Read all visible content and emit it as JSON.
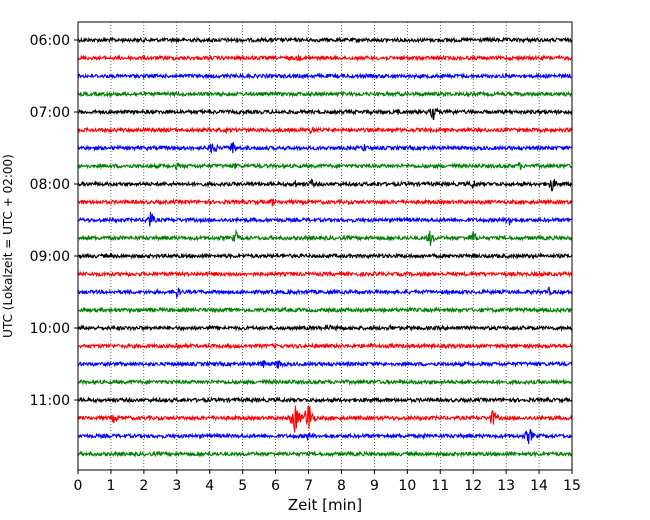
{
  "chart_data": {
    "type": "line",
    "title": "",
    "xlabel": "Zeit  [min]",
    "ylabel": "UTC (Lokalzeit = UTC + 02:00)",
    "xlim": [
      0,
      15
    ],
    "x_ticks": [
      "0",
      "1",
      "2",
      "3",
      "4",
      "5",
      "6",
      "7",
      "8",
      "9",
      "10",
      "11",
      "12",
      "13",
      "14",
      "15"
    ],
    "y_tick_labels": [
      "06:00",
      "07:00",
      "08:00",
      "09:00",
      "10:00",
      "11:00"
    ],
    "grid": "vertical dotted",
    "trace_colors": [
      "#000000",
      "#ff0000",
      "#0000ff",
      "#008000"
    ],
    "traces": [
      {
        "start": "06:00",
        "color": "#000000",
        "events": [
          [
            4.8,
            3
          ]
        ]
      },
      {
        "start": "06:15",
        "color": "#ff0000",
        "events": [
          [
            6.7,
            4
          ]
        ]
      },
      {
        "start": "06:30",
        "color": "#0000ff",
        "events": []
      },
      {
        "start": "06:45",
        "color": "#008000",
        "events": [
          [
            14.5,
            2
          ]
        ]
      },
      {
        "start": "07:00",
        "color": "#000000",
        "events": [
          [
            9.7,
            4
          ],
          [
            10.8,
            9
          ],
          [
            11.3,
            5
          ]
        ]
      },
      {
        "start": "07:15",
        "color": "#ff0000",
        "events": [
          [
            4.5,
            3
          ],
          [
            7.1,
            5
          ]
        ]
      },
      {
        "start": "07:30",
        "color": "#0000ff",
        "events": [
          [
            4.1,
            9
          ],
          [
            4.7,
            8
          ],
          [
            8.7,
            5
          ]
        ]
      },
      {
        "start": "07:45",
        "color": "#008000",
        "events": [
          [
            3.0,
            4
          ],
          [
            4.8,
            4
          ],
          [
            13.4,
            5
          ]
        ]
      },
      {
        "start": "08:00",
        "color": "#000000",
        "events": [
          [
            6.6,
            5
          ],
          [
            7.1,
            5
          ],
          [
            9.1,
            3
          ],
          [
            12.0,
            6
          ],
          [
            14.4,
            9
          ]
        ]
      },
      {
        "start": "08:15",
        "color": "#ff0000",
        "events": [
          [
            3.3,
            3
          ],
          [
            5.9,
            5
          ]
        ]
      },
      {
        "start": "08:30",
        "color": "#0000ff",
        "events": [
          [
            2.2,
            10
          ],
          [
            13.1,
            7
          ]
        ]
      },
      {
        "start": "08:45",
        "color": "#008000",
        "events": [
          [
            4.8,
            7
          ],
          [
            10.7,
            9
          ],
          [
            12.0,
            8
          ]
        ]
      },
      {
        "start": "09:00",
        "color": "#000000",
        "events": []
      },
      {
        "start": "09:15",
        "color": "#ff0000",
        "events": [
          [
            1.5,
            3
          ],
          [
            4.2,
            3
          ]
        ]
      },
      {
        "start": "09:30",
        "color": "#0000ff",
        "events": [
          [
            3.0,
            7
          ],
          [
            6.5,
            3
          ],
          [
            14.3,
            5
          ]
        ]
      },
      {
        "start": "09:45",
        "color": "#008000",
        "events": []
      },
      {
        "start": "10:00",
        "color": "#000000",
        "events": [
          [
            7.6,
            5
          ],
          [
            7.9,
            4
          ],
          [
            9.5,
            4
          ]
        ]
      },
      {
        "start": "10:15",
        "color": "#ff0000",
        "events": [
          [
            3.0,
            5
          ],
          [
            8.9,
            3
          ],
          [
            11.5,
            3
          ]
        ]
      },
      {
        "start": "10:30",
        "color": "#0000ff",
        "events": [
          [
            5.6,
            6
          ],
          [
            6.1,
            7
          ]
        ]
      },
      {
        "start": "10:45",
        "color": "#008000",
        "events": []
      },
      {
        "start": "11:00",
        "color": "#000000",
        "events": [
          [
            4.8,
            3
          ]
        ]
      },
      {
        "start": "11:15",
        "color": "#ff0000",
        "events": [
          [
            1.1,
            6
          ],
          [
            6.6,
            18
          ],
          [
            7.0,
            20
          ],
          [
            12.6,
            10
          ]
        ]
      },
      {
        "start": "11:30",
        "color": "#0000ff",
        "events": [
          [
            7.0,
            5
          ],
          [
            10.5,
            3
          ],
          [
            13.7,
            10
          ]
        ]
      },
      {
        "start": "11:45",
        "color": "#008000",
        "events": []
      }
    ]
  }
}
